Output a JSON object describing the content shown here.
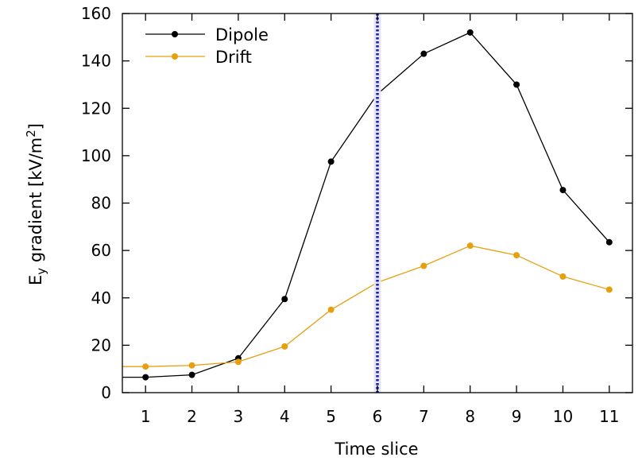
{
  "chart_data": {
    "type": "line",
    "x": [
      1,
      2,
      3,
      4,
      5,
      6,
      7,
      8,
      9,
      10,
      11
    ],
    "xlim": [
      0.5,
      11.5
    ],
    "ylim": [
      0,
      160
    ],
    "xticks": [
      1,
      2,
      3,
      4,
      5,
      6,
      7,
      8,
      9,
      10,
      11
    ],
    "yticks": [
      0,
      20,
      40,
      60,
      80,
      100,
      120,
      140,
      160
    ],
    "xlabel": "Time slice",
    "ylabel_main": "E",
    "ylabel_sub": "y",
    "ylabel_rest": " gradient [kV/m",
    "ylabel_sup": "2",
    "ylabel_end": "]",
    "grid": false,
    "legend_position": "top-left",
    "vertical_line": {
      "x": 6,
      "color": "#1c1cb4",
      "style": "dotted"
    },
    "series": [
      {
        "name": "Dipole",
        "color": "#000000",
        "values": [
          6.5,
          7.5,
          14.5,
          39.5,
          97.5,
          126,
          143,
          152,
          130,
          85.5,
          63.5
        ],
        "start_y": 6.5
      },
      {
        "name": "Drift",
        "color": "#e6a00e",
        "values": [
          11,
          11.5,
          13,
          19.5,
          35,
          46.5,
          53.5,
          62,
          58,
          49,
          43.5
        ],
        "start_y": 11
      }
    ]
  }
}
